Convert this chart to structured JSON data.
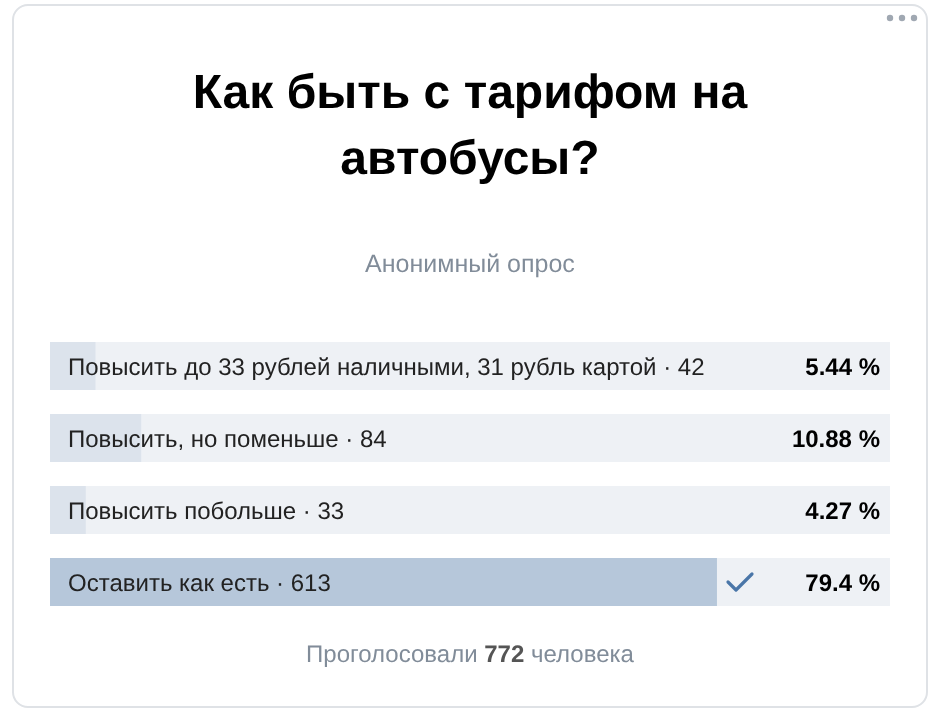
{
  "chart_data": {
    "type": "bar",
    "orientation": "horizontal",
    "title": "Как быть с тарифом на автобусы?",
    "subtitle": "Анонимный опрос",
    "categories": [
      "Повысить до 33 рублей наличными, 31 рубль картой · 42",
      "Повысить, но поменьше · 84",
      "Повысить побольше · 33",
      "Оставить как есть · 613"
    ],
    "values": [
      5.44,
      10.88,
      4.27,
      79.4
    ],
    "colors": [
      "#dce3ec",
      "#dce3ec",
      "#dce3ec",
      "#b6c7da"
    ],
    "value_labels": [
      "5.44 %",
      "10.88 %",
      "4.27 %",
      "79.4 %"
    ],
    "xlim": [
      0,
      100
    ],
    "tick_labels": false,
    "annotations": [
      "Проголосовали 772 человека"
    ]
  }
}
